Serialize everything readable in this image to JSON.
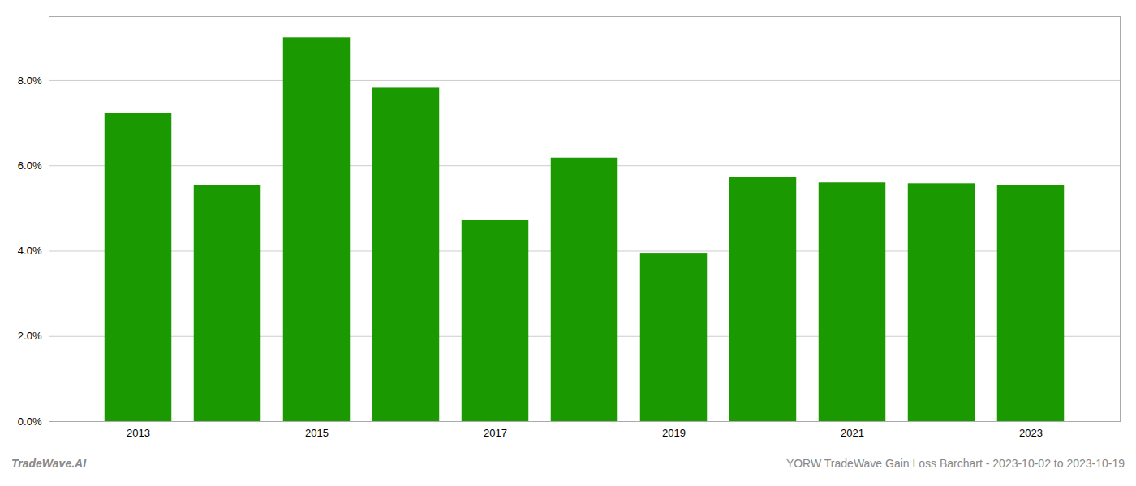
{
  "chart_data": {
    "type": "bar",
    "x": [
      2013,
      2014,
      2015,
      2016,
      2017,
      2018,
      2019,
      2020,
      2021,
      2022,
      2023
    ],
    "values": [
      0.0722,
      0.0553,
      0.09,
      0.0782,
      0.0472,
      0.0618,
      0.0395,
      0.0572,
      0.056,
      0.0558,
      0.0553
    ],
    "color": "#1a9a00",
    "xlim": [
      2012,
      2024
    ],
    "xticks": [
      2013,
      2015,
      2017,
      2019,
      2021,
      2023
    ],
    "ylim": [
      0,
      0.095
    ],
    "yticks": [
      {
        "value": 0.0,
        "label": "0.0%"
      },
      {
        "value": 0.02,
        "label": "2.0%"
      },
      {
        "value": 0.04,
        "label": "4.0%"
      },
      {
        "value": 0.06,
        "label": "6.0%"
      },
      {
        "value": 0.08,
        "label": "8.0%"
      }
    ],
    "grid": true,
    "annotations": [
      "TradeWave.AI",
      "YORW TradeWave Gain Loss Barchart - 2023-10-02 to 2023-10-19"
    ]
  }
}
